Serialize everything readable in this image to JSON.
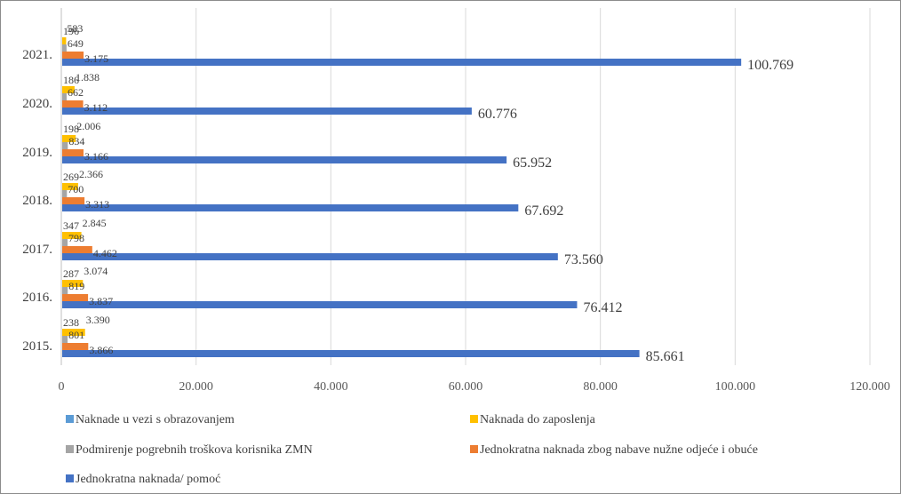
{
  "chart_data": {
    "type": "bar",
    "orientation": "horizontal",
    "categories": [
      "2021.",
      "2020.",
      "2019.",
      "2018.",
      "2017.",
      "2016.",
      "2015."
    ],
    "value_labels": {
      "Naknade u vezi s obrazovanjem": [
        "",
        "",
        "",
        "",
        "",
        "",
        ""
      ],
      "Naknada do zaposlenja": [
        "583",
        "1.838",
        "2.006",
        "2.366",
        "2.845",
        "3.074",
        "3.390"
      ],
      "Podmirenje pogrebnih troškova korisnika ZMN": [
        "649",
        "662",
        "834",
        "700",
        "798",
        "819",
        "801"
      ],
      "Jednokratna naknada zbog nabave nužne odjeće i obuće": [
        "3.175",
        "3.112",
        "3.166",
        "3.313",
        "4.462",
        "3.837",
        "3.866"
      ],
      "Jednokratna naknada/ pomoć": [
        "100.769",
        "60.776",
        "65.952",
        "67.692",
        "73.560",
        "76.412",
        "85.661"
      ]
    },
    "extra_labels": [
      "196",
      "186",
      "198",
      "269",
      "347",
      "287",
      "238"
    ],
    "series": [
      {
        "name": "Naknade u vezi s obrazovanjem",
        "color": "#5b9bd5",
        "values": [
          196,
          186,
          198,
          269,
          347,
          287,
          238
        ]
      },
      {
        "name": "Naknada do zaposlenja",
        "color": "#ffc000",
        "values": [
          583,
          1838,
          2006,
          2366,
          2845,
          3074,
          3390
        ]
      },
      {
        "name": "Podmirenje pogrebnih troškova korisnika ZMN",
        "color": "#a5a5a5",
        "values": [
          649,
          662,
          834,
          700,
          798,
          819,
          801
        ]
      },
      {
        "name": "Jednokratna naknada zbog nabave nužne odjeće i obuće",
        "color": "#ed7d31",
        "values": [
          3175,
          3112,
          3166,
          3313,
          4462,
          3837,
          3866
        ]
      },
      {
        "name": "Jednokratna naknada/ pomoć",
        "color": "#4472c4",
        "values": [
          100769,
          60776,
          65952,
          67692,
          73560,
          76412,
          85661
        ]
      }
    ],
    "xlim": [
      0,
      120000
    ],
    "x_ticks": [
      0,
      20000,
      40000,
      60000,
      80000,
      100000,
      120000
    ],
    "x_tick_labels": [
      "0",
      "20.000",
      "40.000",
      "60.000",
      "80.000",
      "100.000",
      "120.000"
    ],
    "grid": "vertical",
    "legend_position": "bottom",
    "title": "",
    "xlabel": "",
    "ylabel": ""
  }
}
